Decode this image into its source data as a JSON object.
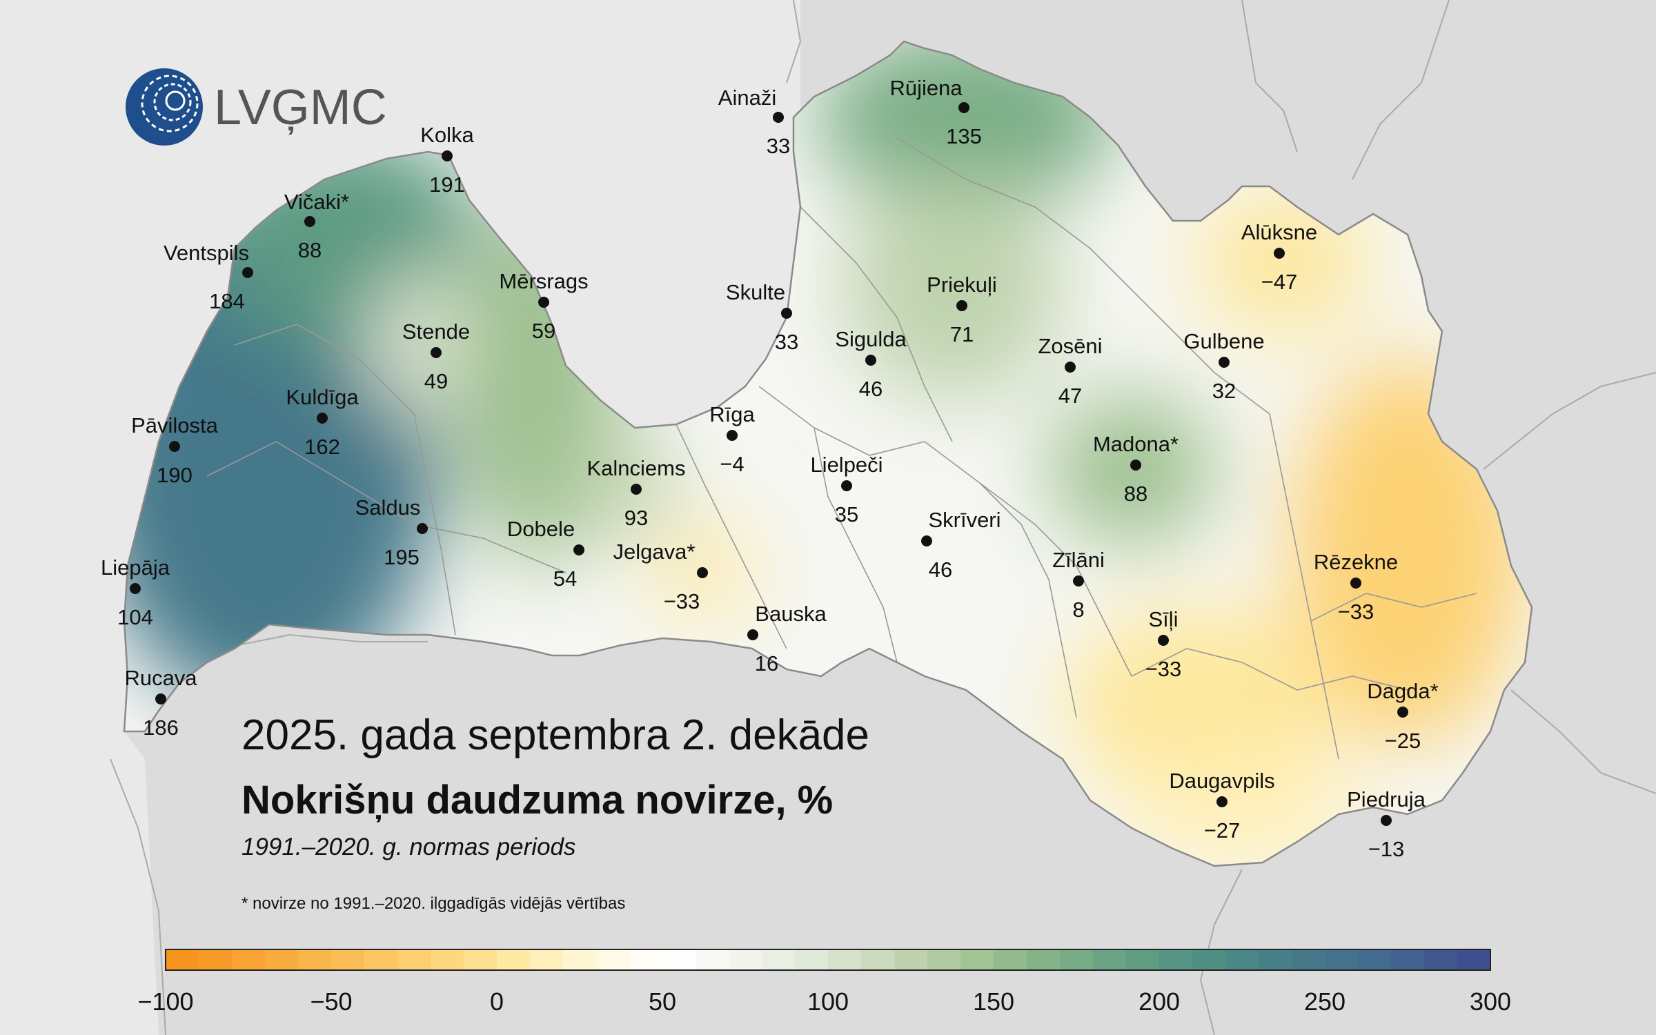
{
  "logo": {
    "text": "LVĢMC"
  },
  "map": {
    "subtitle": "2025. gada septembra 2. dekāde",
    "title": "Nokrišņu daudzuma novirze, %",
    "period": "1991.–2020. g. normas periods",
    "footnote": "* novirze no 1991.–2020. ilggadīgās vidējās vērtības"
  },
  "stations": [
    {
      "name": "Ainaži",
      "value": "33"
    },
    {
      "name": "Rūjiena",
      "value": "135"
    },
    {
      "name": "Kolka",
      "value": "191"
    },
    {
      "name": "Vičaki*",
      "value": "88"
    },
    {
      "name": "Ventspils",
      "value": "184"
    },
    {
      "name": "Mērsrags",
      "value": "59"
    },
    {
      "name": "Stende",
      "value": "49"
    },
    {
      "name": "Skulte",
      "value": "33"
    },
    {
      "name": "Priekuļi",
      "value": "71"
    },
    {
      "name": "Alūksne",
      "value": "−47"
    },
    {
      "name": "Sigulda",
      "value": "46"
    },
    {
      "name": "Zosēni",
      "value": "47"
    },
    {
      "name": "Gulbene",
      "value": "32"
    },
    {
      "name": "Kuldīga",
      "value": "162"
    },
    {
      "name": "Pāvilosta",
      "value": "190"
    },
    {
      "name": "Rīga",
      "value": "−4"
    },
    {
      "name": "Madona*",
      "value": "88"
    },
    {
      "name": "Kalnciems",
      "value": "93"
    },
    {
      "name": "Lielpeči",
      "value": "35"
    },
    {
      "name": "Saldus",
      "value": "195"
    },
    {
      "name": "Dobele",
      "value": "54"
    },
    {
      "name": "Skrīveri",
      "value": "46"
    },
    {
      "name": "Jelgava*",
      "value": "−33"
    },
    {
      "name": "Zīlāni",
      "value": "8"
    },
    {
      "name": "Rēzekne",
      "value": "−33"
    },
    {
      "name": "Liepāja",
      "value": "104"
    },
    {
      "name": "Bauska",
      "value": "16"
    },
    {
      "name": "Sīļi",
      "value": "−33"
    },
    {
      "name": "Rucava",
      "value": "186"
    },
    {
      "name": "Dagda*",
      "value": "−25"
    },
    {
      "name": "Daugavpils",
      "value": "−27"
    },
    {
      "name": "Piedruja",
      "value": "−13"
    }
  ],
  "colorbar": {
    "min": -100,
    "max": 300,
    "ticks": [
      "−100",
      "−50",
      "0",
      "50",
      "100",
      "150",
      "200",
      "250",
      "300"
    ],
    "colors": [
      "#f7941d",
      "#f9a83a",
      "#fbbd55",
      "#fdd274",
      "#fee89c",
      "#fff8d8",
      "#ffffff",
      "#f2f4ee",
      "#dde6d2",
      "#bfd3ae",
      "#9dc08f",
      "#79ad85",
      "#5c9a82",
      "#4a8a85",
      "#45788a",
      "#436690",
      "#3d4f8f"
    ]
  }
}
